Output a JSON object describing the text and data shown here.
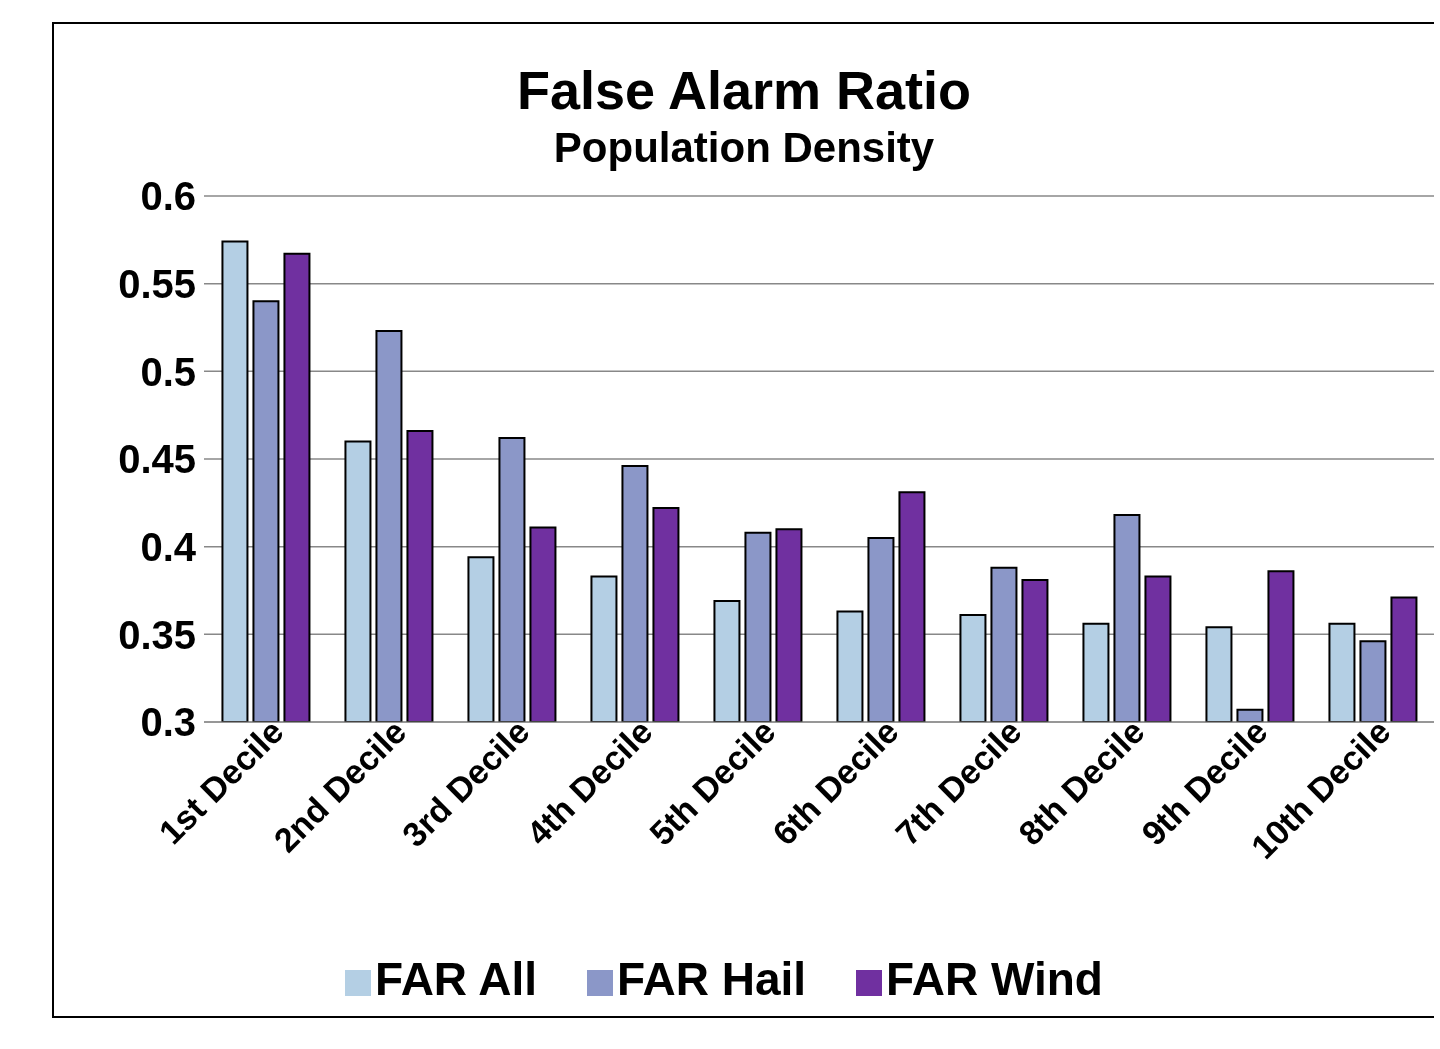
{
  "chart_data": {
    "type": "bar",
    "title": "False Alarm Ratio",
    "subtitle": "Population Density",
    "categories": [
      "1st Decile",
      "2nd Decile",
      "3rd Decile",
      "4th Decile",
      "5th Decile",
      "6th Decile",
      "7th Decile",
      "8th Decile",
      "9th Decile",
      "10th Decile"
    ],
    "series": [
      {
        "name": "FAR All",
        "color": "#b4cfe4",
        "values": [
          0.574,
          0.46,
          0.394,
          0.383,
          0.369,
          0.363,
          0.361,
          0.356,
          0.354,
          0.356
        ]
      },
      {
        "name": "FAR Hail",
        "color": "#8b97c8",
        "values": [
          0.54,
          0.523,
          0.462,
          0.446,
          0.408,
          0.405,
          0.388,
          0.418,
          0.307,
          0.346
        ]
      },
      {
        "name": "FAR Wind",
        "color": "#7030a0",
        "values": [
          0.567,
          0.466,
          0.411,
          0.422,
          0.41,
          0.431,
          0.381,
          0.383,
          0.386,
          0.371
        ]
      }
    ],
    "ylim": [
      0.3,
      0.6
    ],
    "yticks": [
      0.3,
      0.35,
      0.4,
      0.45,
      0.5,
      0.55,
      0.6
    ],
    "grid": "y",
    "legend": "bottom"
  }
}
